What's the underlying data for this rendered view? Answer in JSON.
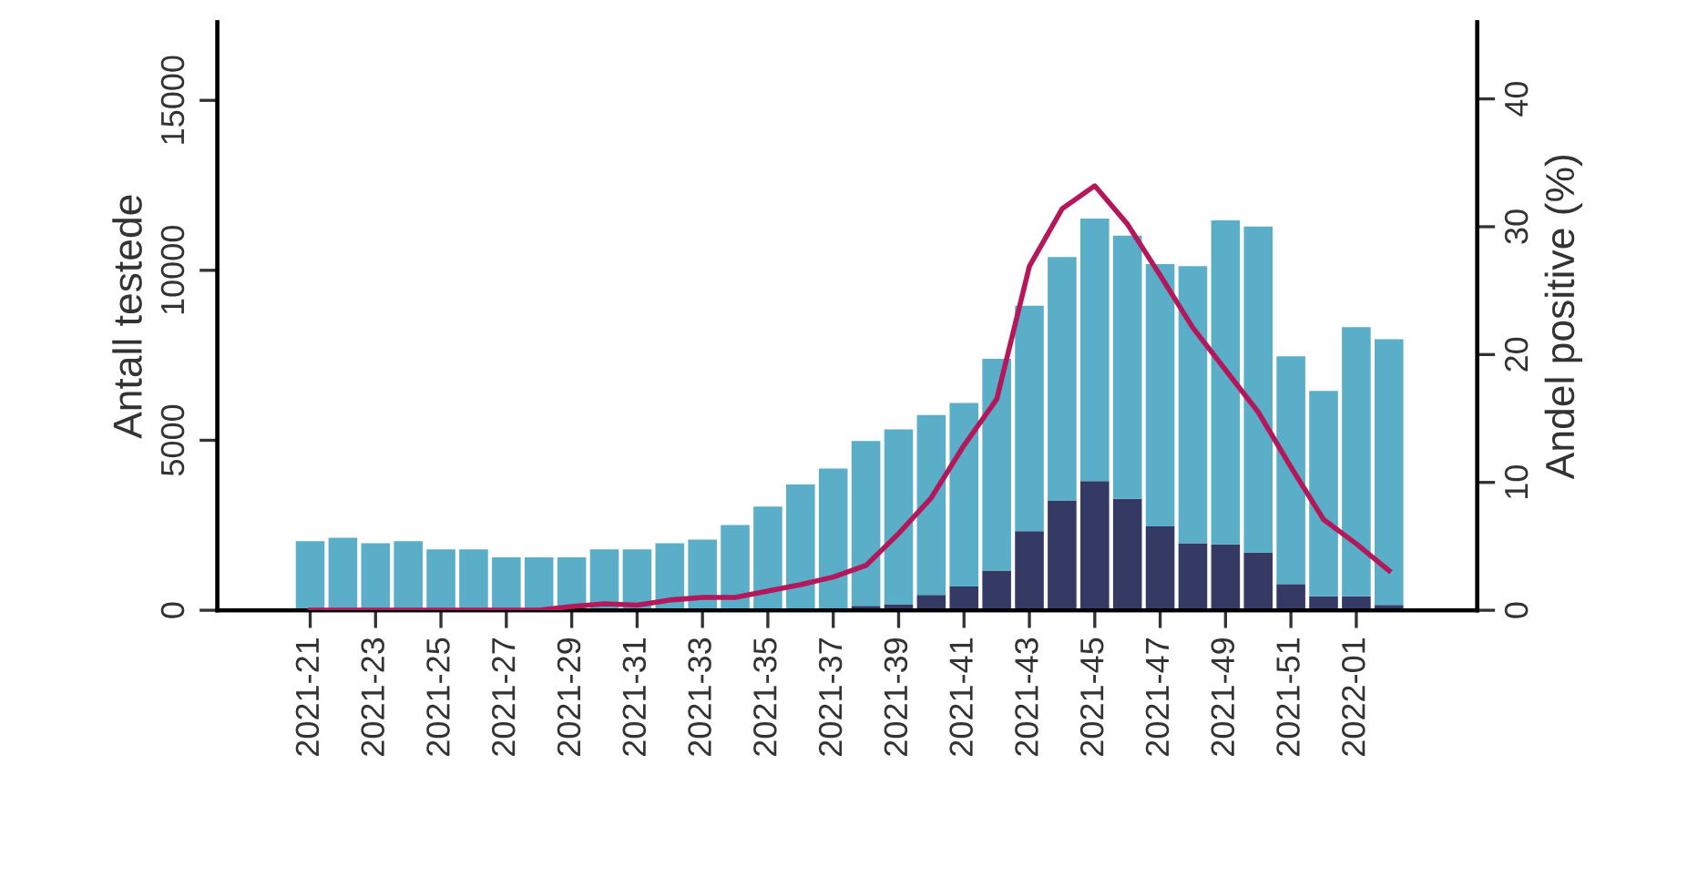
{
  "chart_data": {
    "type": "bar",
    "stacked": true,
    "ylabel": "Antall testede",
    "y2label": "Andel positive (%)",
    "categories": [
      "2021-21",
      null,
      "2021-23",
      null,
      "2021-25",
      null,
      "2021-27",
      null,
      "2021-29",
      null,
      "2021-31",
      null,
      "2021-33",
      null,
      "2021-35",
      null,
      "2021-37",
      null,
      "2021-39",
      null,
      "2021-41",
      null,
      "2021-43",
      null,
      "2021-45",
      null,
      "2021-47",
      null,
      "2021-49",
      null,
      "2021-51",
      null,
      "2022-01",
      null
    ],
    "series": [
      {
        "color": "#353a65",
        "values": [
          10,
          10,
          10,
          10,
          10,
          10,
          10,
          10,
          20,
          20,
          30,
          30,
          40,
          40,
          50,
          null,
          null,
          130,
          180,
          450,
          700,
          1170,
          2330,
          3230,
          3800,
          3280,
          2470,
          1970,
          1940,
          1700,
          770,
          410,
          410,
          160
        ]
      },
      {
        "color": "#5aaec8",
        "values": [
          2020,
          2120,
          1960,
          2020,
          1780,
          1780,
          1550,
          1550,
          1540,
          1770,
          1760,
          1940,
          2040,
          2470,
          3000,
          3700,
          4170,
          4850,
          5140,
          5290,
          5400,
          6230,
          6630,
          7160,
          7720,
          7740,
          7710,
          8150,
          9530,
          9590,
          6700,
          6040,
          7920,
          7810
        ]
      },
      {
        "type": "line",
        "axis": "y2",
        "color": "#b5185a",
        "values": [
          0,
          0,
          0,
          0,
          0,
          0,
          0,
          0,
          0.3,
          0.5,
          0.4,
          0.8,
          1.0,
          1.0,
          1.5,
          2.0,
          2.6,
          3.5,
          6.0,
          8.8,
          12.9,
          16.5,
          26.9,
          31.4,
          33.2,
          30.2,
          26.2,
          22.1,
          18.8,
          15.5,
          11.2,
          7.1,
          5.2,
          3.1
        ]
      }
    ],
    "ylim": [
      0,
      17300
    ],
    "yticks": [
      0,
      5000,
      10000,
      15000
    ],
    "y2lim": [
      0,
      46
    ],
    "y2ticks": [
      0,
      10,
      20,
      30,
      40
    ],
    "grid": false,
    "legend": false
  }
}
